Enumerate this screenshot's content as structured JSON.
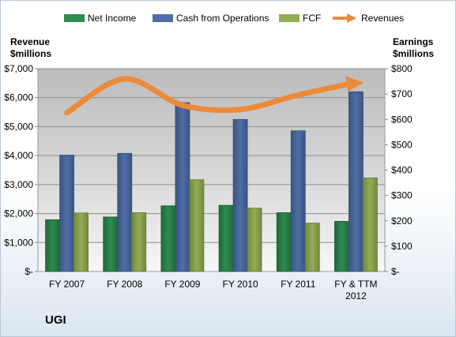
{
  "company_label": "UGI",
  "colors": {
    "net_income": "#2e8b4e",
    "cash_ops": "#4f6ea3",
    "fcf": "#93ad56",
    "revenues": "#ec8a3a"
  },
  "chart_data": {
    "type": "bar",
    "categories": [
      "FY 2007",
      "FY 2008",
      "FY 2009",
      "FY 2010",
      "FY 2011",
      "FY & TTM 2012"
    ],
    "category_lines": [
      [
        "FY 2007"
      ],
      [
        "FY 2008"
      ],
      [
        "FY 2009"
      ],
      [
        "FY 2010"
      ],
      [
        "FY 2011"
      ],
      [
        "FY & TTM",
        "2012"
      ]
    ],
    "series": [
      {
        "name": "Net Income",
        "axis": "right",
        "type": "bar",
        "values": [
          204,
          215,
          259,
          261,
          232,
          198
        ]
      },
      {
        "name": "Cash from Operations",
        "axis": "right",
        "type": "bar",
        "values": [
          459,
          466,
          666,
          600,
          555,
          709
        ]
      },
      {
        "name": "FCF",
        "axis": "right",
        "type": "bar",
        "values": [
          231,
          232,
          362,
          250,
          191,
          369
        ]
      },
      {
        "name": "Revenues",
        "axis": "left",
        "type": "line",
        "values": [
          5477,
          6648,
          5738,
          5591,
          6092,
          6521
        ]
      }
    ],
    "y_left": {
      "title_lines": [
        "Revenue",
        "$millions"
      ],
      "ylim": [
        0,
        7000
      ],
      "ticks": [
        "$-",
        "$1,000",
        "$2,000",
        "$3,000",
        "$4,000",
        "$5,000",
        "$6,000",
        "$7,000"
      ]
    },
    "y_right": {
      "title_lines": [
        "Earnings",
        "$millions"
      ],
      "ylim": [
        0,
        800
      ],
      "ticks": [
        "$-",
        "$100",
        "$200",
        "$300",
        "$400",
        "$500",
        "$600",
        "$700",
        "$800"
      ]
    },
    "legend": [
      "Net Income",
      "Cash from Operations",
      "FCF",
      "Revenues"
    ],
    "legend_position": "top",
    "grid": true
  }
}
